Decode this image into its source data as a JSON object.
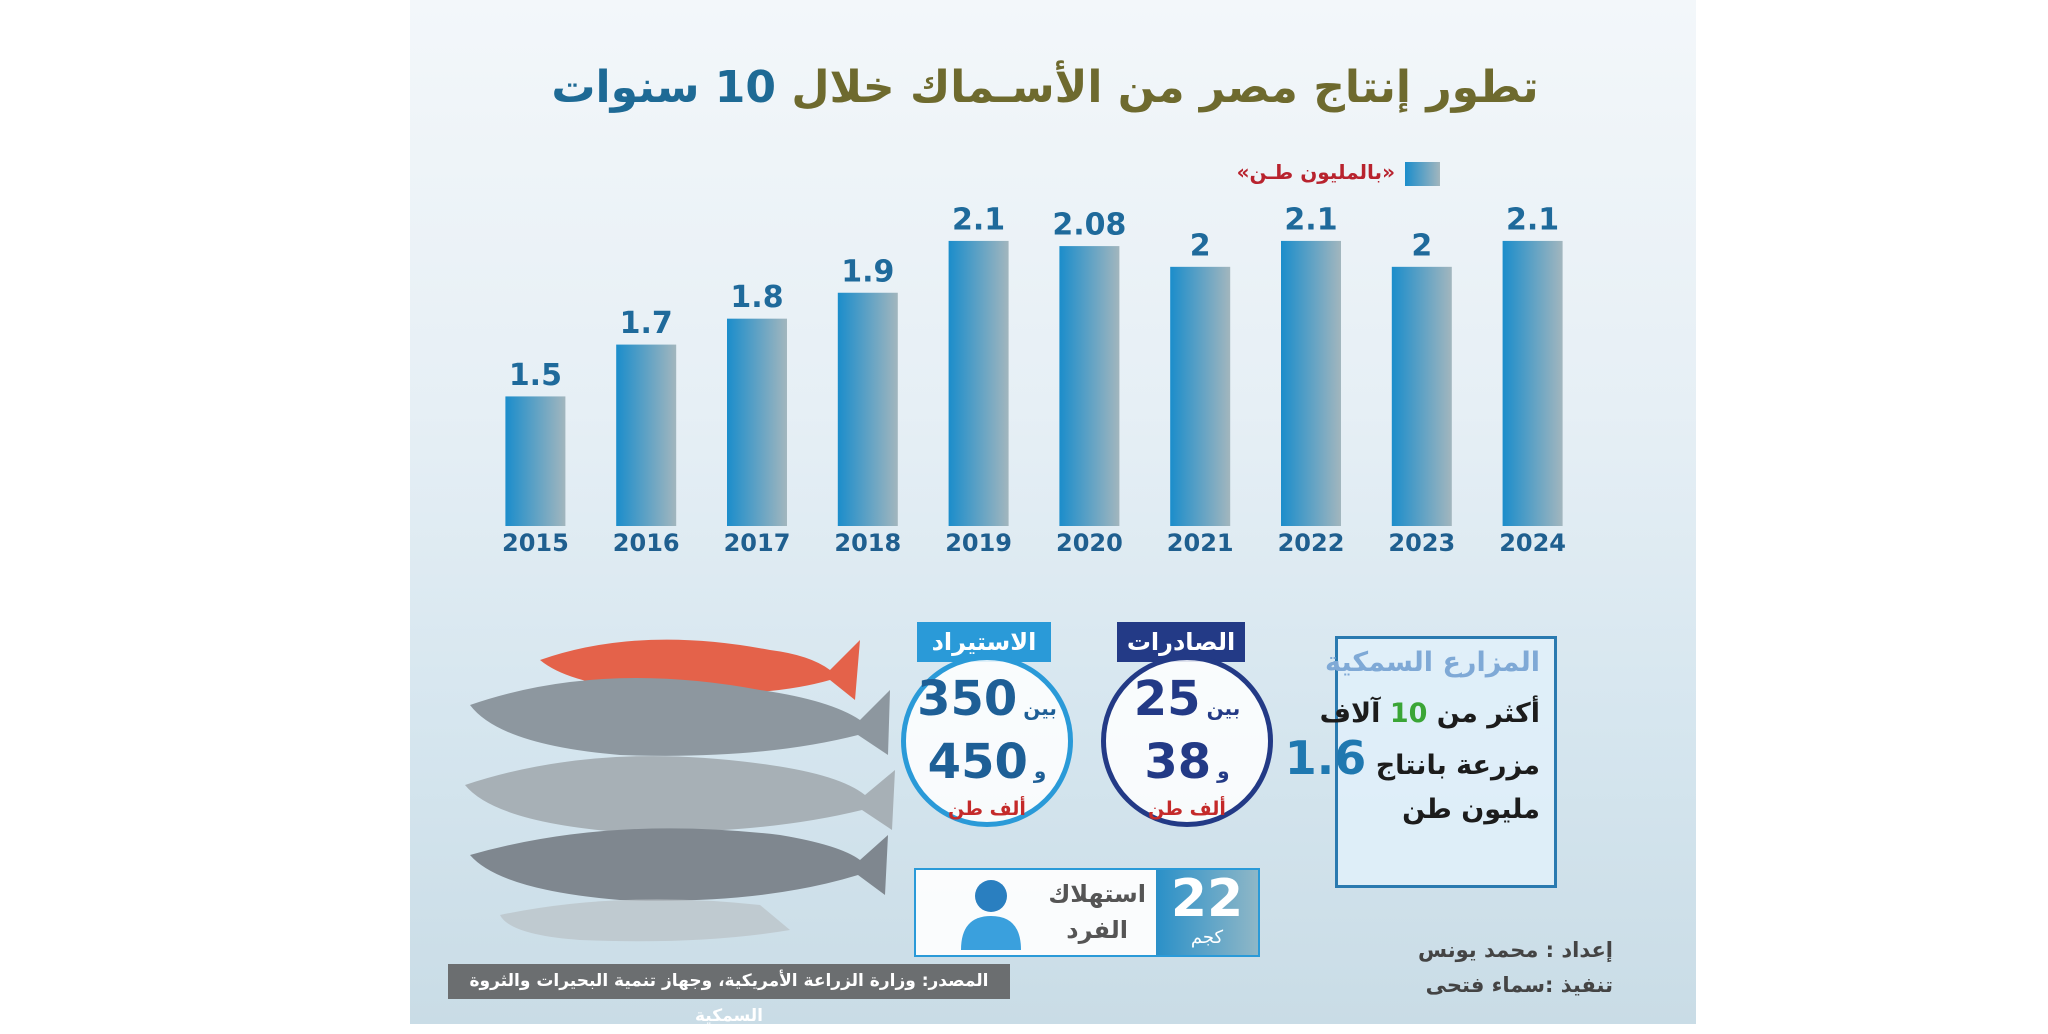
{
  "chart_data": {
    "type": "bar",
    "title": [
      "تطور إنتاج مصر من الأسـماك خلال",
      "10 سنوات"
    ],
    "categories": [
      "2015",
      "2016",
      "2017",
      "2018",
      "2019",
      "2020",
      "2021",
      "2022",
      "2023",
      "2024"
    ],
    "series": [
      {
        "name": "«بالمليون طـن»",
        "color": "#1b8dcb",
        "values": [
          1.5,
          1.7,
          1.8,
          1.9,
          2.1,
          2.08,
          2,
          2.1,
          2,
          2.1
        ]
      }
    ],
    "ylim": [
      1,
      2.2
    ]
  },
  "farms": {
    "title": "المزارع السمكية",
    "line1": [
      "أكثر من",
      "10",
      "آلاف"
    ],
    "line2": [
      "مزرعة بانتاج",
      "1.6"
    ],
    "line3": "مليون طن"
  },
  "exports": {
    "label": "الصادرات",
    "between": "بين",
    "from": 25,
    "and": "و",
    "to": 38,
    "unit": "ألف طن"
  },
  "imports": {
    "label": "الاستيراد",
    "between": "بين",
    "from": 350,
    "and": "و",
    "to": 450,
    "unit": "ألف طن"
  },
  "consumption": {
    "value": 22,
    "unit": "كجم",
    "label": [
      "استهلاك",
      "الفرد"
    ]
  },
  "credits": {
    "prepared": "إعداد : محمد يونس",
    "executed": "تنفيذ :سماء فتحى"
  },
  "source": "المصدر: وزارة الزراعة الأمريكية، وجهاز تنمية البحيرات والثروة السمكية"
}
